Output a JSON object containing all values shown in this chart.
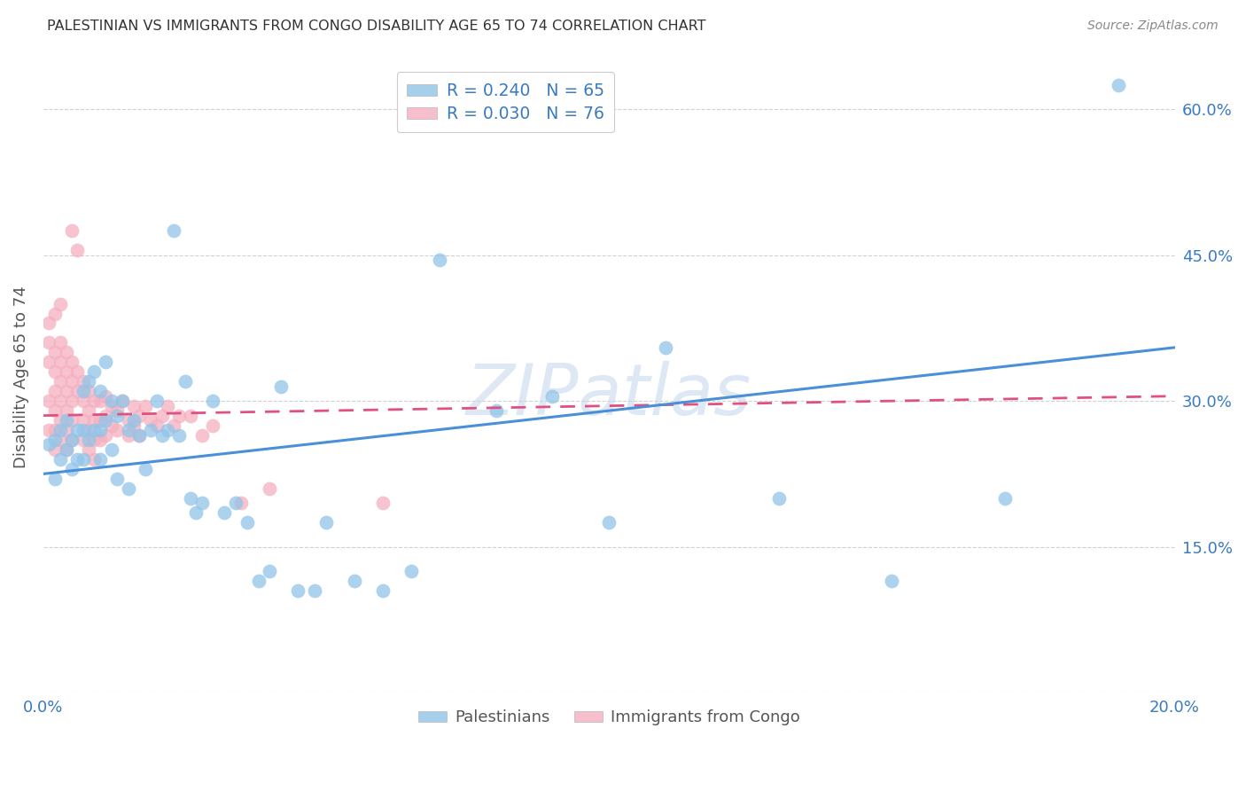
{
  "title": "PALESTINIAN VS IMMIGRANTS FROM CONGO DISABILITY AGE 65 TO 74 CORRELATION CHART",
  "source": "Source: ZipAtlas.com",
  "ylabel": "Disability Age 65 to 74",
  "xlim": [
    0.0,
    0.2
  ],
  "ylim": [
    0.0,
    0.65
  ],
  "xticks": [
    0.0,
    0.04,
    0.08,
    0.12,
    0.16,
    0.2
  ],
  "yticks": [
    0.0,
    0.15,
    0.3,
    0.45,
    0.6
  ],
  "grid_color": "#cccccc",
  "background_color": "#ffffff",
  "watermark": "ZIPatlas",
  "blue_color": "#90c4e8",
  "pink_color": "#f5afc0",
  "blue_line_color": "#4a90d9",
  "pink_line_color": "#e05080",
  "legend_R_blue": "0.240",
  "legend_N_blue": "65",
  "legend_R_pink": "0.030",
  "legend_N_pink": "76",
  "blue_label": "Palestinians",
  "pink_label": "Immigrants from Congo",
  "blue_line_x0": 0.0,
  "blue_line_y0": 0.225,
  "blue_line_x1": 0.2,
  "blue_line_y1": 0.355,
  "pink_line_x0": 0.0,
  "pink_line_y0": 0.285,
  "pink_line_x1": 0.2,
  "pink_line_y1": 0.305,
  "blue_scatter_x": [
    0.001,
    0.002,
    0.002,
    0.003,
    0.003,
    0.004,
    0.004,
    0.005,
    0.005,
    0.006,
    0.006,
    0.007,
    0.007,
    0.007,
    0.008,
    0.008,
    0.009,
    0.009,
    0.01,
    0.01,
    0.01,
    0.011,
    0.011,
    0.012,
    0.012,
    0.013,
    0.013,
    0.014,
    0.015,
    0.015,
    0.016,
    0.017,
    0.018,
    0.019,
    0.02,
    0.021,
    0.022,
    0.023,
    0.024,
    0.025,
    0.026,
    0.027,
    0.028,
    0.03,
    0.032,
    0.034,
    0.036,
    0.038,
    0.04,
    0.042,
    0.045,
    0.048,
    0.05,
    0.055,
    0.06,
    0.065,
    0.07,
    0.08,
    0.09,
    0.1,
    0.11,
    0.13,
    0.15,
    0.17,
    0.19
  ],
  "blue_scatter_y": [
    0.255,
    0.26,
    0.22,
    0.27,
    0.24,
    0.28,
    0.25,
    0.26,
    0.23,
    0.27,
    0.24,
    0.31,
    0.27,
    0.24,
    0.32,
    0.26,
    0.33,
    0.27,
    0.31,
    0.27,
    0.24,
    0.34,
    0.28,
    0.3,
    0.25,
    0.285,
    0.22,
    0.3,
    0.27,
    0.21,
    0.28,
    0.265,
    0.23,
    0.27,
    0.3,
    0.265,
    0.27,
    0.475,
    0.265,
    0.32,
    0.2,
    0.185,
    0.195,
    0.3,
    0.185,
    0.195,
    0.175,
    0.115,
    0.125,
    0.315,
    0.105,
    0.105,
    0.175,
    0.115,
    0.105,
    0.125,
    0.445,
    0.29,
    0.305,
    0.175,
    0.355,
    0.2,
    0.115,
    0.2,
    0.625
  ],
  "pink_scatter_x": [
    0.001,
    0.001,
    0.001,
    0.001,
    0.001,
    0.002,
    0.002,
    0.002,
    0.002,
    0.002,
    0.002,
    0.002,
    0.003,
    0.003,
    0.003,
    0.003,
    0.003,
    0.003,
    0.003,
    0.004,
    0.004,
    0.004,
    0.004,
    0.004,
    0.004,
    0.005,
    0.005,
    0.005,
    0.005,
    0.005,
    0.005,
    0.006,
    0.006,
    0.006,
    0.007,
    0.007,
    0.007,
    0.007,
    0.008,
    0.008,
    0.008,
    0.008,
    0.009,
    0.009,
    0.009,
    0.009,
    0.01,
    0.01,
    0.01,
    0.011,
    0.011,
    0.011,
    0.012,
    0.012,
    0.013,
    0.013,
    0.014,
    0.015,
    0.015,
    0.016,
    0.016,
    0.017,
    0.017,
    0.018,
    0.019,
    0.02,
    0.021,
    0.022,
    0.023,
    0.024,
    0.026,
    0.028,
    0.03,
    0.035,
    0.04,
    0.06
  ],
  "pink_scatter_y": [
    0.38,
    0.36,
    0.34,
    0.3,
    0.27,
    0.35,
    0.33,
    0.31,
    0.29,
    0.27,
    0.25,
    0.39,
    0.36,
    0.34,
    0.32,
    0.3,
    0.28,
    0.26,
    0.4,
    0.35,
    0.33,
    0.31,
    0.29,
    0.27,
    0.25,
    0.34,
    0.32,
    0.3,
    0.28,
    0.26,
    0.475,
    0.455,
    0.33,
    0.31,
    0.32,
    0.3,
    0.28,
    0.26,
    0.31,
    0.29,
    0.27,
    0.25,
    0.3,
    0.28,
    0.26,
    0.24,
    0.3,
    0.28,
    0.26,
    0.305,
    0.285,
    0.265,
    0.295,
    0.275,
    0.29,
    0.27,
    0.3,
    0.28,
    0.265,
    0.295,
    0.275,
    0.285,
    0.265,
    0.295,
    0.28,
    0.275,
    0.285,
    0.295,
    0.275,
    0.285,
    0.285,
    0.265,
    0.275,
    0.195,
    0.21,
    0.195
  ]
}
